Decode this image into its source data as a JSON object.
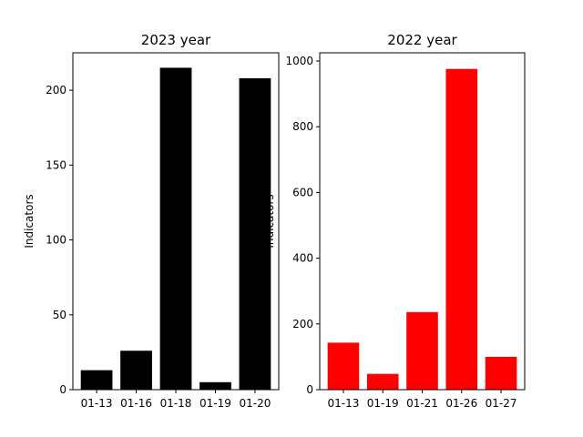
{
  "chart_data": [
    {
      "type": "bar",
      "title": "2023 year",
      "xlabel": "",
      "ylabel": "Indicators",
      "categories": [
        "01-13",
        "01-16",
        "01-18",
        "01-19",
        "01-20"
      ],
      "values": [
        13,
        26,
        215,
        5,
        208
      ],
      "ylim": [
        0,
        225
      ],
      "yticks": [
        0,
        50,
        100,
        150,
        200
      ],
      "color": "#000000",
      "grid": false
    },
    {
      "type": "bar",
      "title": "2022 year",
      "xlabel": "",
      "ylabel": "Indicators",
      "categories": [
        "01-13",
        "01-19",
        "01-21",
        "01-26",
        "01-27"
      ],
      "values": [
        143,
        48,
        236,
        976,
        100
      ],
      "ylim": [
        0,
        1025
      ],
      "yticks": [
        0,
        200,
        400,
        600,
        800,
        1000
      ],
      "color": "#ff0000",
      "grid": false
    }
  ]
}
